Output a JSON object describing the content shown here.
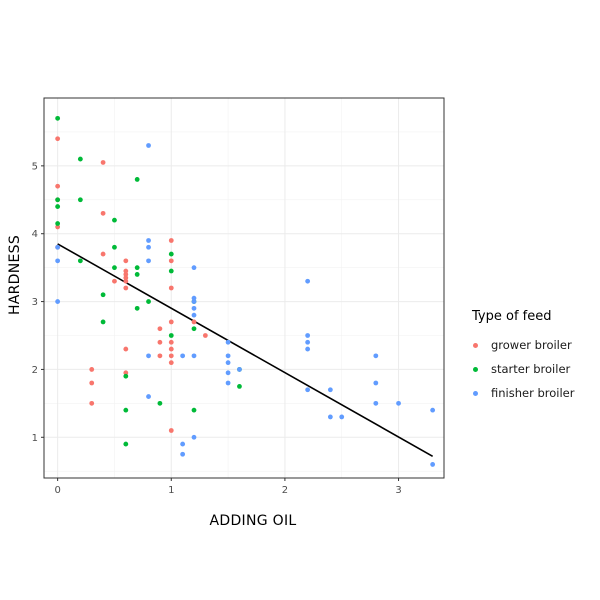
{
  "chart_data": {
    "type": "scatter",
    "title": "",
    "xlabel": "ADDING OIL",
    "ylabel": "HARDNESS",
    "xlim": [
      -0.12,
      3.4
    ],
    "ylim": [
      0.4,
      6.0
    ],
    "xticks": [
      0,
      1,
      2,
      3
    ],
    "yticks": [
      1,
      2,
      3,
      4,
      5
    ],
    "grid": true,
    "legend": {
      "title": "Type of feed",
      "position": "right"
    },
    "series": [
      {
        "name": "grower broiler",
        "color": "#F8766D",
        "points": [
          [
            0,
            5.4
          ],
          [
            0,
            4.7
          ],
          [
            0,
            4.5
          ],
          [
            0,
            4.1
          ],
          [
            0,
            3.8
          ],
          [
            0.3,
            2.0
          ],
          [
            0.3,
            1.8
          ],
          [
            0.3,
            1.5
          ],
          [
            0.4,
            5.05
          ],
          [
            0.4,
            4.3
          ],
          [
            0.4,
            3.7
          ],
          [
            0.5,
            3.3
          ],
          [
            0.6,
            3.6
          ],
          [
            0.6,
            3.45
          ],
          [
            0.6,
            3.4
          ],
          [
            0.6,
            3.35
          ],
          [
            0.6,
            3.3
          ],
          [
            0.6,
            3.2
          ],
          [
            0.6,
            2.3
          ],
          [
            0.6,
            1.95
          ],
          [
            0.9,
            2.6
          ],
          [
            0.9,
            2.4
          ],
          [
            0.9,
            2.2
          ],
          [
            1.0,
            3.9
          ],
          [
            1.0,
            3.6
          ],
          [
            1.0,
            3.2
          ],
          [
            1.0,
            2.7
          ],
          [
            1.0,
            2.4
          ],
          [
            1.0,
            2.3
          ],
          [
            1.0,
            2.2
          ],
          [
            1.0,
            2.1
          ],
          [
            1.0,
            1.1
          ],
          [
            1.2,
            2.7
          ],
          [
            1.3,
            2.5
          ]
        ]
      },
      {
        "name": "starter broiler",
        "color": "#00BA38",
        "points": [
          [
            0,
            5.7
          ],
          [
            0,
            4.5
          ],
          [
            0,
            4.4
          ],
          [
            0,
            4.15
          ],
          [
            0.2,
            5.1
          ],
          [
            0.2,
            4.5
          ],
          [
            0.2,
            3.6
          ],
          [
            0.4,
            3.1
          ],
          [
            0.4,
            2.7
          ],
          [
            0.5,
            4.2
          ],
          [
            0.5,
            3.8
          ],
          [
            0.5,
            3.5
          ],
          [
            0.6,
            1.9
          ],
          [
            0.6,
            1.4
          ],
          [
            0.6,
            0.9
          ],
          [
            0.7,
            4.8
          ],
          [
            0.7,
            3.5
          ],
          [
            0.7,
            3.4
          ],
          [
            0.7,
            2.9
          ],
          [
            0.8,
            3.0
          ],
          [
            0.9,
            1.5
          ],
          [
            1.0,
            3.7
          ],
          [
            1.0,
            3.45
          ],
          [
            1.0,
            2.5
          ],
          [
            1.2,
            3.0
          ],
          [
            1.2,
            2.6
          ],
          [
            1.2,
            1.4
          ],
          [
            1.6,
            2.0
          ],
          [
            1.6,
            1.75
          ]
        ]
      },
      {
        "name": "finisher broiler",
        "color": "#619CFF",
        "points": [
          [
            0,
            3.8
          ],
          [
            0,
            3.6
          ],
          [
            0,
            3.0
          ],
          [
            0.8,
            5.3
          ],
          [
            0.8,
            3.9
          ],
          [
            0.8,
            3.8
          ],
          [
            0.8,
            3.6
          ],
          [
            0.8,
            2.2
          ],
          [
            0.8,
            1.6
          ],
          [
            1.1,
            2.2
          ],
          [
            1.1,
            0.9
          ],
          [
            1.1,
            0.75
          ],
          [
            1.2,
            3.5
          ],
          [
            1.2,
            3.05
          ],
          [
            1.2,
            3.0
          ],
          [
            1.2,
            2.9
          ],
          [
            1.2,
            2.8
          ],
          [
            1.2,
            2.2
          ],
          [
            1.2,
            1.0
          ],
          [
            1.5,
            2.4
          ],
          [
            1.5,
            2.2
          ],
          [
            1.5,
            2.1
          ],
          [
            1.5,
            1.95
          ],
          [
            1.5,
            1.8
          ],
          [
            1.6,
            2.0
          ],
          [
            2.2,
            3.3
          ],
          [
            2.2,
            2.5
          ],
          [
            2.2,
            2.4
          ],
          [
            2.2,
            2.3
          ],
          [
            2.2,
            1.7
          ],
          [
            2.4,
            1.7
          ],
          [
            2.4,
            1.3
          ],
          [
            2.5,
            1.3
          ],
          [
            2.8,
            2.2
          ],
          [
            2.8,
            1.8
          ],
          [
            2.8,
            1.5
          ],
          [
            3.0,
            1.5
          ],
          [
            3.3,
            1.4
          ],
          [
            3.3,
            0.6
          ]
        ]
      }
    ],
    "fit_line": {
      "color": "#000000",
      "from": [
        0,
        3.85
      ],
      "to": [
        3.3,
        0.72
      ]
    }
  }
}
